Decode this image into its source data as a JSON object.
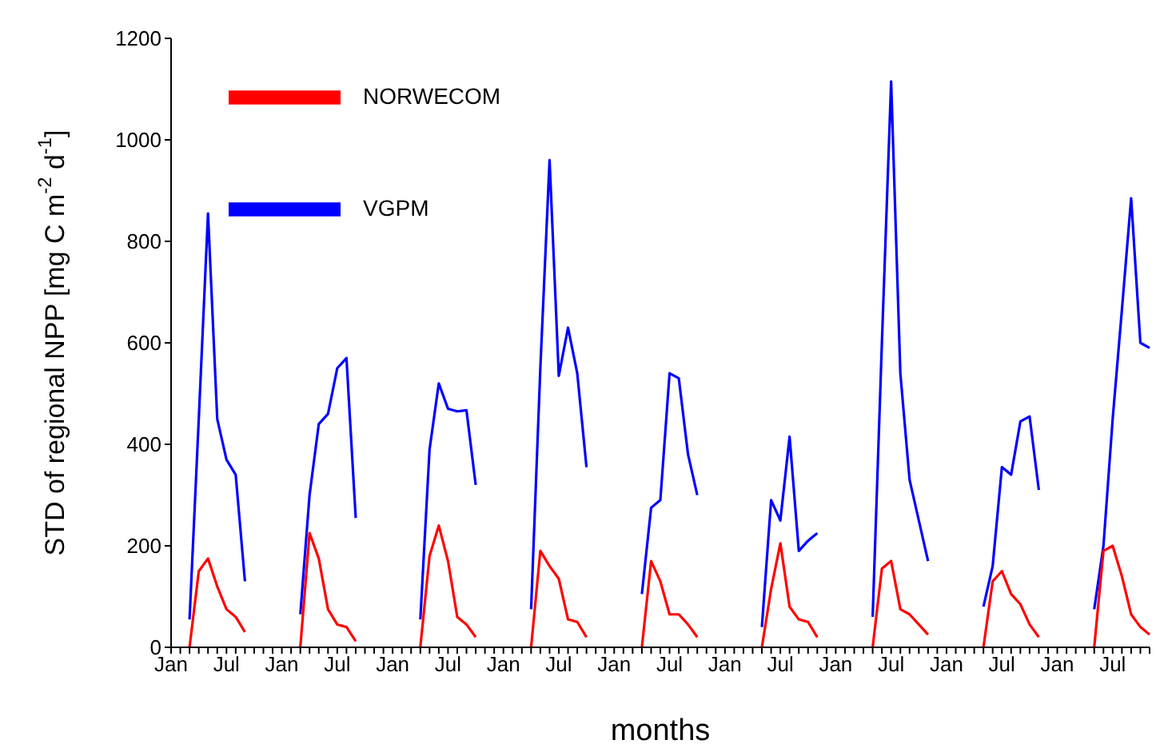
{
  "chart_data": {
    "type": "line",
    "xlabel": "months",
    "ylabel": "STD of regional NPP [mg C m$^{-2}$ d$^{-1}$]",
    "categories": [
      "Jan",
      null,
      null,
      null,
      null,
      null,
      "Jul",
      null,
      null,
      null,
      null,
      null,
      "Jan",
      null,
      null,
      null,
      null,
      null,
      "Jul",
      null,
      null,
      null,
      null,
      null,
      "Jan",
      null,
      null,
      null,
      null,
      null,
      "Jul",
      null,
      null,
      null,
      null,
      null,
      "Jan",
      null,
      null,
      null,
      null,
      null,
      "Jul",
      null,
      null,
      null,
      null,
      null,
      "Jan",
      null,
      null,
      null,
      null,
      null,
      "Jul",
      null,
      null,
      null,
      null,
      null,
      "Jan",
      null,
      null,
      null,
      null,
      null,
      "Jul",
      null,
      null,
      null,
      null,
      null,
      "Jan",
      null,
      null,
      null,
      null,
      null,
      "Jul",
      null,
      null,
      null,
      null,
      null,
      "Jan",
      null,
      null,
      null,
      null,
      null,
      "Jul",
      null,
      null,
      null,
      null,
      null,
      "Jan",
      null,
      null,
      null,
      null,
      null,
      "Jul",
      null,
      null,
      null,
      null
    ],
    "ylim": [
      0,
      1200
    ],
    "yticks": [
      0,
      200,
      400,
      600,
      800,
      1000,
      1200
    ],
    "legend": "top left",
    "line_style": "solid",
    "marker": "none",
    "series": [
      {
        "name": "VGPM",
        "color": "#0000ff",
        "values": [
          null,
          null,
          55,
          450,
          855,
          450,
          370,
          340,
          130,
          null,
          null,
          null,
          null,
          null,
          65,
          300,
          440,
          460,
          550,
          570,
          255,
          null,
          null,
          null,
          null,
          null,
          null,
          55,
          390,
          520,
          470,
          465,
          467,
          320,
          null,
          null,
          null,
          null,
          null,
          75,
          550,
          960,
          535,
          630,
          540,
          355,
          null,
          null,
          null,
          null,
          null,
          105,
          275,
          290,
          540,
          530,
          380,
          300,
          null,
          null,
          null,
          null,
          null,
          null,
          40,
          290,
          250,
          415,
          190,
          210,
          225,
          null,
          null,
          null,
          null,
          null,
          60,
          600,
          1115,
          540,
          330,
          250,
          170,
          null,
          null,
          null,
          null,
          null,
          80,
          160,
          355,
          340,
          445,
          455,
          310,
          null,
          null,
          null,
          null,
          null,
          75,
          200,
          450,
          665,
          885,
          600,
          590
        ]
      },
      {
        "name": "NORWECOM",
        "color": "#ff0000",
        "values": [
          null,
          null,
          0,
          150,
          175,
          120,
          75,
          60,
          30,
          null,
          null,
          null,
          null,
          null,
          0,
          225,
          175,
          75,
          45,
          40,
          12,
          null,
          null,
          null,
          null,
          null,
          null,
          0,
          180,
          240,
          170,
          60,
          45,
          20,
          null,
          null,
          null,
          null,
          null,
          0,
          190,
          160,
          135,
          55,
          50,
          20,
          null,
          null,
          null,
          null,
          null,
          0,
          170,
          130,
          65,
          65,
          45,
          20,
          null,
          null,
          null,
          null,
          null,
          null,
          0,
          115,
          205,
          80,
          55,
          50,
          20,
          null,
          null,
          null,
          null,
          null,
          0,
          155,
          170,
          75,
          65,
          45,
          25,
          null,
          null,
          null,
          null,
          null,
          0,
          130,
          150,
          105,
          85,
          45,
          20,
          null,
          null,
          null,
          null,
          null,
          0,
          190,
          200,
          140,
          65,
          40,
          25
        ]
      }
    ]
  }
}
